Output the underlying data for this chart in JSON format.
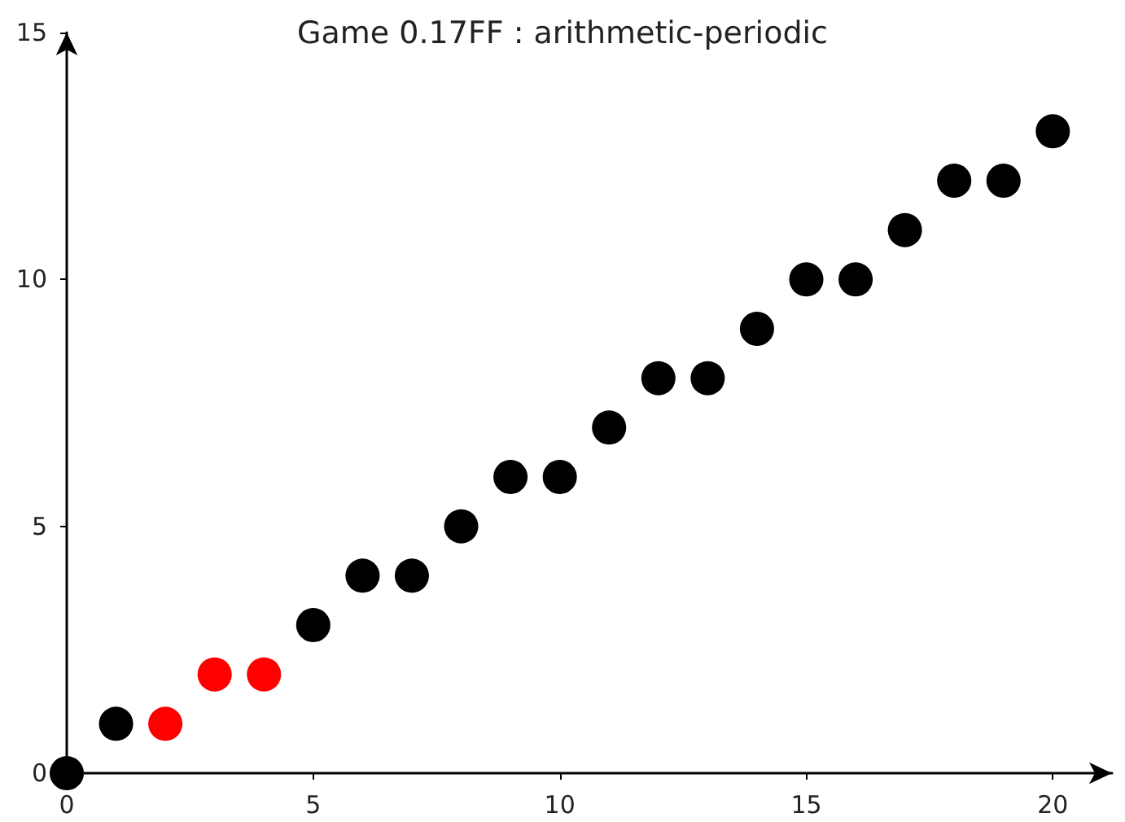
{
  "chart_data": {
    "type": "scatter",
    "title": "Game 0.17FF : arithmetic-periodic",
    "series": [
      {
        "color": "#000000",
        "x": [
          0,
          1,
          5,
          6,
          7,
          8,
          9,
          10,
          11,
          12,
          13,
          14,
          15,
          16,
          17,
          18,
          19,
          20
        ],
        "values": [
          0,
          1,
          3,
          4,
          4,
          5,
          6,
          6,
          7,
          8,
          8,
          9,
          10,
          10,
          11,
          12,
          12,
          13
        ]
      },
      {
        "color": "#ff0000",
        "x": [
          2,
          3,
          4
        ],
        "values": [
          1,
          2,
          2
        ]
      }
    ],
    "xlim": [
      0,
      21.2
    ],
    "xticks": [
      0,
      5,
      10,
      15,
      20
    ],
    "ylim": [
      0,
      15
    ],
    "yticks": [
      0,
      5,
      10,
      15
    ],
    "grid": false,
    "marker": "circle"
  }
}
